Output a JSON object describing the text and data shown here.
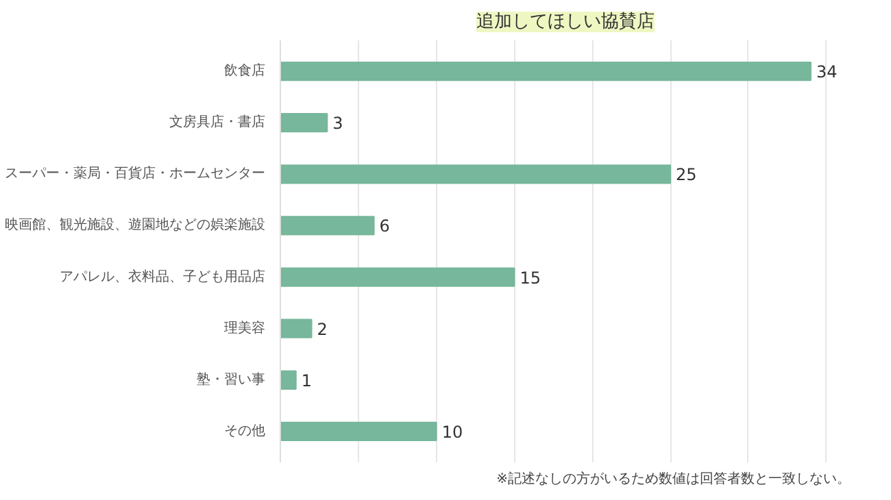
{
  "chart_data": {
    "type": "bar",
    "orientation": "horizontal",
    "title": "追加してほしい協賛店",
    "categories": [
      "飲食店",
      "文房具店・書店",
      "スーパー・薬局・百貨店・ホームセンター",
      "映画館、観光施設、遊園地などの娯楽施設",
      "アパレル、衣料品、子ども用品店",
      "理美容",
      "塾・習い事",
      "その他"
    ],
    "values": [
      34,
      3,
      25,
      6,
      15,
      2,
      1,
      10
    ],
    "color": "#77b79b",
    "tick_labels": "y",
    "grid": "x",
    "data_labels": true,
    "annotations": [
      "※記述なしの方がいるため数値は回答者数と一致しない。"
    ]
  }
}
